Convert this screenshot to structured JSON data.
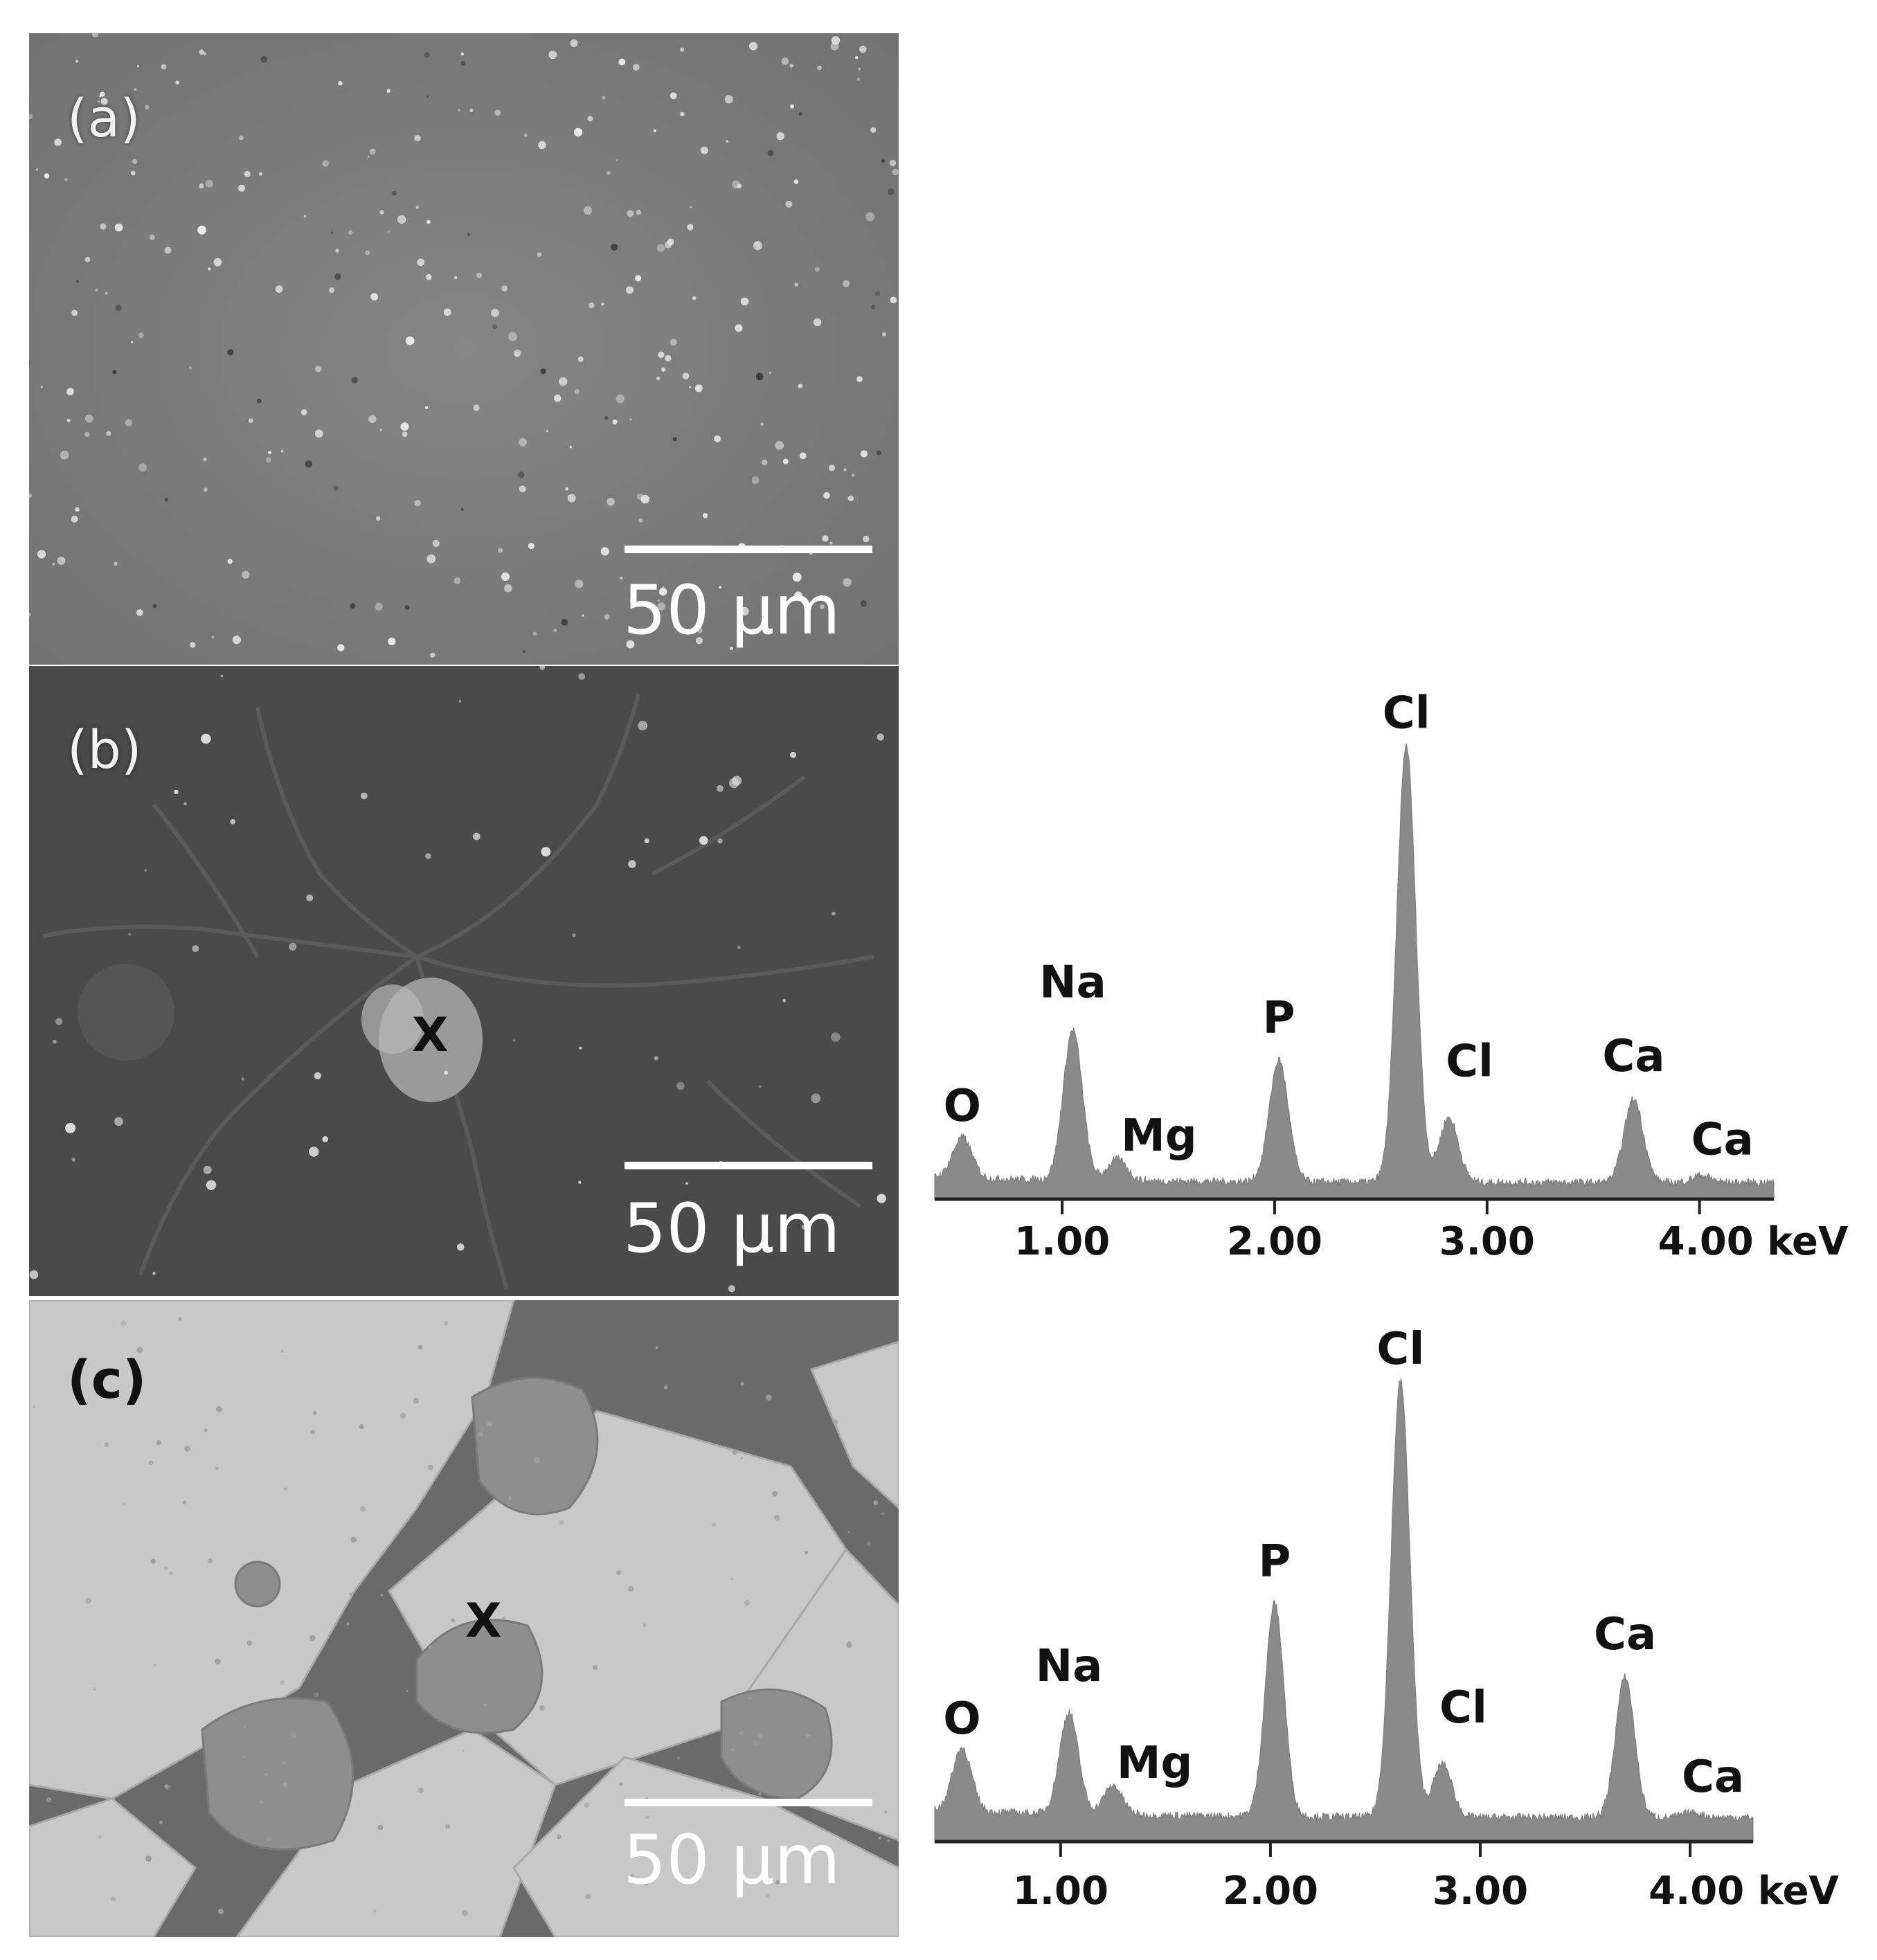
{
  "panels": {
    "a": {
      "label": "(a)",
      "scale_bar": "50 µm"
    },
    "b": {
      "label": "(b)",
      "scale_bar": "50 µm",
      "marker": "X"
    },
    "c": {
      "label": "(c)",
      "scale_bar": "50 µm",
      "marker": "X"
    }
  },
  "chart_data": [
    {
      "type": "area",
      "panel": "b",
      "xlabel": "",
      "ylabel": "",
      "x_unit": "keV",
      "xlim": [
        0.4,
        4.35
      ],
      "xticks": [
        1.0,
        2.0,
        3.0,
        4.0
      ],
      "tick_labels": [
        "1.00",
        "2.00",
        "3.00",
        "4.00 keV"
      ],
      "ylim": [
        0,
        100
      ],
      "baseline": 3.5,
      "peaks": [
        {
          "element": "O",
          "energy": 0.53,
          "height": 12
        },
        {
          "element": "Na",
          "energy": 1.05,
          "height": 35
        },
        {
          "element": "Mg",
          "energy": 1.26,
          "height": 8
        },
        {
          "element": "P",
          "energy": 2.02,
          "height": 29
        },
        {
          "element": "Cl",
          "energy": 2.62,
          "height": 95
        },
        {
          "element": "Cl",
          "energy": 2.82,
          "height": 17
        },
        {
          "element": "Ca",
          "energy": 3.69,
          "height": 21
        },
        {
          "element": "Ca",
          "energy": 4.01,
          "height": 5
        }
      ],
      "annotations": [
        "O",
        "Na",
        "Mg",
        "P",
        "Cl",
        "Cl",
        "Ca",
        "Ca"
      ]
    },
    {
      "type": "area",
      "panel": "c",
      "xlabel": "",
      "ylabel": "",
      "x_unit": "keV",
      "xlim": [
        0.4,
        4.3
      ],
      "xticks": [
        1.0,
        2.0,
        3.0,
        4.0
      ],
      "tick_labels": [
        "1.00",
        "2.00",
        "3.00",
        "4.00 keV"
      ],
      "ylim": [
        0,
        100
      ],
      "baseline": 5,
      "peaks": [
        {
          "element": "O",
          "energy": 0.53,
          "height": 18
        },
        {
          "element": "Na",
          "energy": 1.04,
          "height": 26
        },
        {
          "element": "Mg",
          "energy": 1.25,
          "height": 11
        },
        {
          "element": "P",
          "energy": 2.02,
          "height": 49
        },
        {
          "element": "Cl",
          "energy": 2.62,
          "height": 95
        },
        {
          "element": "Cl",
          "energy": 2.82,
          "height": 16
        },
        {
          "element": "Ca",
          "energy": 3.69,
          "height": 34
        },
        {
          "element": "Ca",
          "energy": 4.01,
          "height": 6
        }
      ],
      "annotations": [
        "O",
        "Na",
        "Mg",
        "P",
        "Cl",
        "Cl",
        "Ca",
        "Ca"
      ]
    }
  ]
}
